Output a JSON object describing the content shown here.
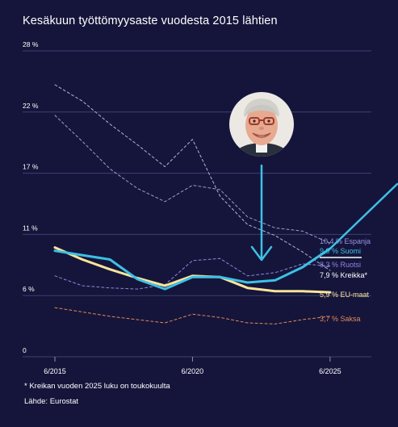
{
  "title": "Kesäkuun työttömyysaste vuodesta 2015 lähtien",
  "footnote": "* Kreikan vuoden 2025 luku on toukokuulta",
  "source": "Lähde: Eurostat",
  "photo_icon": "politician-portrait",
  "colors": {
    "background": "#15153b",
    "grid": "#3b3f73",
    "axis_text": "#ffffff",
    "suomi": "#3ec0e4",
    "eu": "#fbe49a",
    "saksa": "#e28a55",
    "ruotsi": "#8f86e0",
    "espanja": "#9aa0cc",
    "kreikka": "#b0b5d8",
    "arrow": "#3ec0e4"
  },
  "chart_data": {
    "type": "line",
    "title": "Kesäkuun työttömyysaste vuodesta 2015 lähtien",
    "xlabel": "",
    "ylabel": "",
    "ylim": [
      0,
      28
    ],
    "xlim": [
      2015,
      2026.5
    ],
    "grid": true,
    "y_ticks": [
      {
        "value": 0,
        "label": "0"
      },
      {
        "value": 5.6,
        "label": "6 %"
      },
      {
        "value": 11.2,
        "label": "11 %"
      },
      {
        "value": 16.8,
        "label": "17 %"
      },
      {
        "value": 22.4,
        "label": "22 %"
      },
      {
        "value": 28,
        "label": "28 %"
      }
    ],
    "x_ticks": [
      {
        "value": 2015,
        "label": "6/2015"
      },
      {
        "value": 2020,
        "label": "6/2020"
      },
      {
        "value": 2025,
        "label": "6/2025"
      }
    ],
    "x": [
      2015,
      2016,
      2017,
      2018,
      2019,
      2020,
      2021,
      2022,
      2023,
      2024,
      2025
    ],
    "series": [
      {
        "name": "Suomi",
        "label": "9,9 % Suomi",
        "color": "#3ec0e4",
        "width": 3,
        "values": [
          9.7,
          9.3,
          8.9,
          7.1,
          6.2,
          7.3,
          7.3,
          6.8,
          7.0,
          8.2,
          9.9
        ]
      },
      {
        "name": "EU-maat",
        "label": "5,9 % EU-maat",
        "color": "#fbe49a",
        "width": 3,
        "values": [
          10.0,
          8.9,
          8.0,
          7.2,
          6.5,
          7.4,
          7.3,
          6.3,
          6.0,
          6.0,
          5.9
        ]
      },
      {
        "name": "Espanja",
        "label": "10,4 % Espanja",
        "color": "#9aa0cc",
        "width": 1,
        "dash": "3,3",
        "values": [
          22.1,
          19.7,
          17.2,
          15.4,
          14.2,
          15.7,
          15.3,
          12.8,
          11.8,
          11.5,
          10.4
        ]
      },
      {
        "name": "Kreikka",
        "label": "7,9 % Kreikka*",
        "color": "#b0b5d8",
        "width": 1,
        "dash": "3,3",
        "values": [
          24.9,
          23.4,
          21.3,
          19.4,
          17.4,
          19.9,
          14.7,
          12.1,
          11.1,
          9.6,
          7.9
        ]
      },
      {
        "name": "Ruotsi",
        "label": "8,3 % Ruotsi",
        "color": "#8f86e0",
        "width": 1,
        "dash": "3,3",
        "values": [
          7.4,
          6.5,
          6.3,
          6.2,
          6.6,
          8.8,
          9.0,
          7.4,
          7.7,
          8.5,
          8.3
        ]
      },
      {
        "name": "Saksa",
        "label": "3,7 % Saksa",
        "color": "#e28a55",
        "width": 1,
        "dash": "3,3",
        "values": [
          4.5,
          4.1,
          3.7,
          3.4,
          3.1,
          3.9,
          3.6,
          3.1,
          3.0,
          3.4,
          3.7
        ]
      }
    ]
  }
}
